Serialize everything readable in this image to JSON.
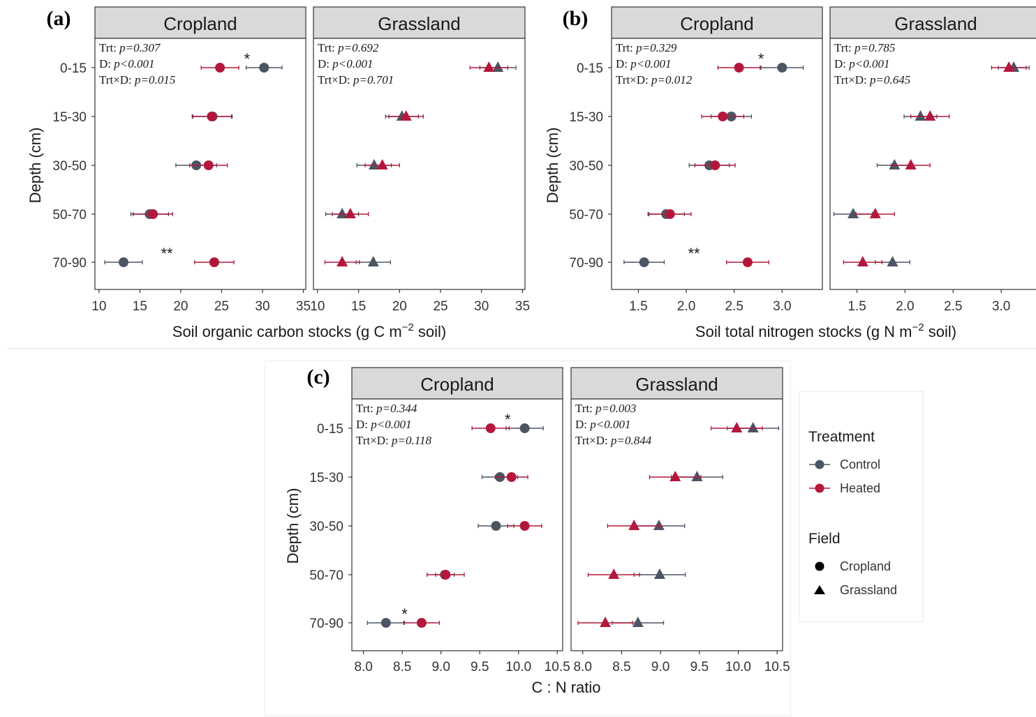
{
  "legend": {
    "treatment_title": "Treatment",
    "treatment_items": [
      {
        "label": "Control",
        "color": "#4b5563"
      },
      {
        "label": "Heated",
        "color": "#b3183c"
      }
    ],
    "field_title": "Field",
    "field_items": [
      {
        "label": "Cropland",
        "shape": "circle"
      },
      {
        "label": "Grassland",
        "shape": "triangle"
      }
    ]
  },
  "colors": {
    "control": "#4b5563",
    "heated": "#b3183c",
    "strip": "#d9d9d9"
  },
  "chart_data": [
    {
      "type": "scatter",
      "panel_tag": "(a)",
      "xlabel": "Soil organic carbon stocks (g C m",
      "xlabel_sup": "−2",
      "xlabel_tail": " soil)",
      "ylabel": "Depth (cm)",
      "categories": [
        "0-15",
        "15-30",
        "30-50",
        "50-70",
        "70-90"
      ],
      "facets": [
        {
          "name": "Cropland",
          "shape": "circle",
          "xlim": [
            9.5,
            35.3
          ],
          "xticks": [
            "10",
            "15",
            "20",
            "25",
            "30",
            "35"
          ],
          "stats": [
            {
              "label": "Trt: ",
              "value": "p=0.307"
            },
            {
              "label": "D: ",
              "value": "p<0.001"
            },
            {
              "label": "Trt×D: ",
              "value": "p=0.015"
            }
          ],
          "series": [
            {
              "name": "Control",
              "values": [
                30.2,
                23.9,
                21.9,
                16.2,
                13.0
              ],
              "err": [
                2.2,
                2.4,
                2.5,
                2.3,
                2.3
              ]
            },
            {
              "name": "Heated",
              "values": [
                24.8,
                23.8,
                23.4,
                16.6,
                24.1
              ],
              "err": [
                2.3,
                2.4,
                2.3,
                2.4,
                2.4
              ]
            }
          ],
          "annotations": [
            {
              "text": "*",
              "category": "0-15",
              "x": 28.1
            },
            {
              "text": "**",
              "category": "70-90",
              "x": 18.3
            }
          ]
        },
        {
          "name": "Grassland",
          "shape": "triangle",
          "xlim": [
            9.5,
            35.3
          ],
          "xticks": [
            "10",
            "15",
            "20",
            "25",
            "30",
            "35"
          ],
          "stats": [
            {
              "label": "Trt: ",
              "value": "p=0.692"
            },
            {
              "label": "D: ",
              "value": "p<0.001"
            },
            {
              "label": "Trt×D: ",
              "value": "p=0.701"
            }
          ],
          "series": [
            {
              "name": "Control",
              "values": [
                32.0,
                20.3,
                16.9,
                13.0,
                16.8
              ],
              "err": [
                2.2,
                2.0,
                2.1,
                2.0,
                2.1
              ]
            },
            {
              "name": "Heated",
              "values": [
                30.9,
                20.8,
                17.9,
                14.0,
                13.0
              ],
              "err": [
                2.3,
                2.1,
                2.1,
                2.2,
                2.1
              ]
            }
          ],
          "annotations": []
        }
      ]
    },
    {
      "type": "scatter",
      "panel_tag": "(b)",
      "xlabel": "Soil total nitrogen stocks (g N m",
      "xlabel_sup": "−2",
      "xlabel_tail": " soil)",
      "ylabel": "Depth (cm)",
      "categories": [
        "0-15",
        "15-30",
        "30-50",
        "50-70",
        "70-90"
      ],
      "facets": [
        {
          "name": "Cropland",
          "shape": "circle",
          "xlim": [
            1.22,
            3.42
          ],
          "xticks": [
            "1.5",
            "2.0",
            "2.5",
            "3.0"
          ],
          "stats": [
            {
              "label": "Trt: ",
              "value": "p=0.329"
            },
            {
              "label": "D: ",
              "value": "p<0.001"
            },
            {
              "label": "Trt×D: ",
              "value": "p=0.012"
            }
          ],
          "series": [
            {
              "name": "Control",
              "values": [
                3.0,
                2.47,
                2.24,
                1.79,
                1.56
              ],
              "err": [
                0.22,
                0.21,
                0.21,
                0.19,
                0.21
              ]
            },
            {
              "name": "Heated",
              "values": [
                2.55,
                2.38,
                2.3,
                1.83,
                2.64
              ],
              "err": [
                0.22,
                0.22,
                0.21,
                0.22,
                0.22
              ]
            }
          ],
          "annotations": [
            {
              "text": "*",
              "category": "0-15",
              "x": 2.78
            },
            {
              "text": "**",
              "category": "70-90",
              "x": 2.08
            }
          ]
        },
        {
          "name": "Grassland",
          "shape": "triangle",
          "xlim": [
            1.22,
            3.42
          ],
          "xticks": [
            "1.5",
            "2.0",
            "2.5",
            "3.0"
          ],
          "stats": [
            {
              "label": "Trt: ",
              "value": "p=0.785"
            },
            {
              "label": "D: ",
              "value": "p<0.001"
            },
            {
              "label": "Trt×D: ",
              "value": "p=0.645"
            }
          ],
          "series": [
            {
              "name": "Control",
              "values": [
                3.13,
                2.16,
                1.89,
                1.46,
                1.87
              ],
              "err": [
                0.16,
                0.17,
                0.18,
                0.2,
                0.18
              ]
            },
            {
              "name": "Heated",
              "values": [
                3.08,
                2.26,
                2.06,
                1.69,
                1.56
              ],
              "err": [
                0.18,
                0.2,
                0.2,
                0.2,
                0.2
              ]
            }
          ],
          "annotations": []
        }
      ]
    },
    {
      "type": "scatter",
      "panel_tag": "(c)",
      "xlabel": "C : N ratio",
      "xlabel_sup": "",
      "xlabel_tail": "",
      "ylabel": "Depth (cm)",
      "categories": [
        "0-15",
        "15-30",
        "30-50",
        "50-70",
        "70-90"
      ],
      "facets": [
        {
          "name": "Cropland",
          "shape": "circle",
          "xlim": [
            7.85,
            10.57
          ],
          "xticks": [
            "8.0",
            "8.5",
            "9.0",
            "9.5",
            "10.0",
            "10.5"
          ],
          "stats": [
            {
              "label": "Trt: ",
              "value": "p=0.344"
            },
            {
              "label": "D: ",
              "value": "p<0.001"
            },
            {
              "label": "Trt×D: ",
              "value": "p=0.118"
            }
          ],
          "series": [
            {
              "name": "Control",
              "values": [
                10.08,
                9.76,
                9.71,
                9.05,
                8.29
              ],
              "err": [
                0.24,
                0.23,
                0.23,
                0.12,
                0.24
              ]
            },
            {
              "name": "Heated",
              "values": [
                9.64,
                9.91,
                10.08,
                9.06,
                8.75
              ],
              "err": [
                0.24,
                0.21,
                0.22,
                0.24,
                0.23
              ]
            }
          ],
          "annotations": [
            {
              "text": "*",
              "category": "0-15",
              "x": 9.86
            },
            {
              "text": "*",
              "category": "70-90",
              "x": 8.53
            }
          ]
        },
        {
          "name": "Grassland",
          "shape": "triangle",
          "xlim": [
            7.85,
            10.57
          ],
          "xticks": [
            "8.0",
            "8.5",
            "9.0",
            "9.5",
            "10.0",
            "10.5"
          ],
          "stats": [
            {
              "label": "Trt: ",
              "value": "p=0.003"
            },
            {
              "label": "D: ",
              "value": "p<0.001"
            },
            {
              "label": "Trt×D: ",
              "value": "p=0.844"
            }
          ],
          "series": [
            {
              "name": "Control",
              "values": [
                10.19,
                9.47,
                8.98,
                8.99,
                8.71
              ],
              "err": [
                0.33,
                0.33,
                0.33,
                0.33,
                0.33
              ]
            },
            {
              "name": "Heated",
              "values": [
                9.98,
                9.19,
                8.66,
                8.4,
                8.29
              ],
              "err": [
                0.33,
                0.33,
                0.34,
                0.33,
                0.35
              ]
            }
          ],
          "annotations": []
        }
      ]
    }
  ]
}
